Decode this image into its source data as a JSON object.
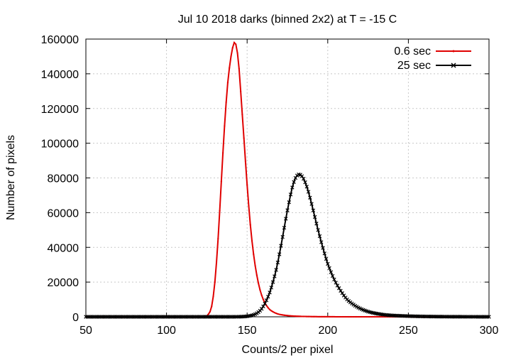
{
  "chart_data": {
    "type": "line",
    "title": "Jul 10 2018 darks (binned 2x2) at T = -15 C",
    "xlabel": "Counts/2 per pixel",
    "ylabel": "Number of pixels",
    "xlim": [
      50,
      300
    ],
    "ylim": [
      0,
      160000
    ],
    "x_ticks": [
      50,
      100,
      150,
      200,
      250,
      300
    ],
    "y_ticks": [
      0,
      20000,
      40000,
      60000,
      80000,
      100000,
      120000,
      140000,
      160000
    ],
    "grid": true,
    "legend_position": "top-right",
    "series": [
      {
        "name": "0.6 sec",
        "color": "#e00000",
        "marker": "dot",
        "x": [
          50,
          100,
          120,
          124,
          126,
          128,
          130,
          132,
          134,
          136,
          138,
          140,
          141,
          142,
          143,
          144,
          145,
          146,
          148,
          150,
          152,
          154,
          156,
          158,
          160,
          162,
          164,
          166,
          168,
          170,
          175,
          180,
          190,
          200,
          220,
          250,
          300
        ],
        "y": [
          0,
          0,
          0,
          200,
          1500,
          6000,
          20000,
          45000,
          78000,
          110000,
          135000,
          150000,
          155000,
          158000,
          157000,
          152000,
          143000,
          130000,
          103000,
          76000,
          53000,
          36000,
          24000,
          15500,
          10000,
          6500,
          4200,
          2900,
          2000,
          1400,
          700,
          350,
          120,
          40,
          10,
          0,
          0
        ]
      },
      {
        "name": "25 sec",
        "color": "#000000",
        "marker": "x",
        "x": [
          50,
          100,
          125,
          140,
          150,
          155,
          158,
          160,
          162,
          164,
          166,
          168,
          170,
          172,
          174,
          176,
          178,
          180,
          182,
          184,
          186,
          188,
          190,
          192,
          194,
          196,
          198,
          200,
          204,
          208,
          212,
          216,
          220,
          225,
          230,
          235,
          240,
          250,
          260,
          270,
          280,
          290,
          300
        ],
        "y": [
          0,
          0,
          0,
          0,
          300,
          1500,
          3500,
          6000,
          9500,
          14000,
          20000,
          27000,
          36000,
          46000,
          56500,
          66000,
          74500,
          80000,
          82000,
          81000,
          77500,
          72000,
          65000,
          57500,
          50000,
          43000,
          36500,
          30500,
          21500,
          15000,
          10000,
          7000,
          4800,
          3000,
          1900,
          1200,
          800,
          400,
          200,
          100,
          50,
          20,
          0
        ]
      }
    ]
  }
}
